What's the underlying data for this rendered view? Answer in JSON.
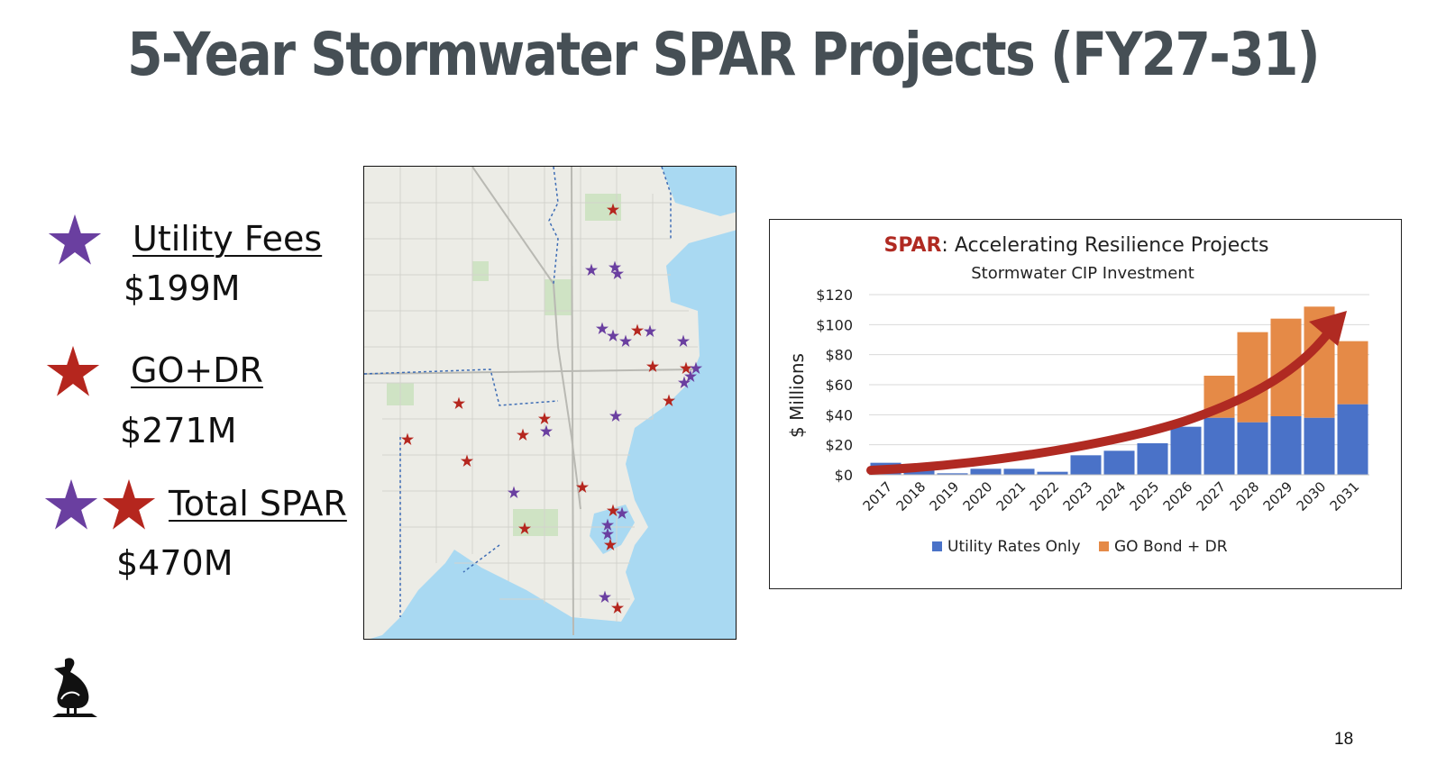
{
  "slide": {
    "title": "5-Year Stormwater SPAR Projects (FY27-31)",
    "page_number": "18"
  },
  "legend": {
    "utility": {
      "label": "Utility Fees",
      "value": "$199M",
      "icon": "purple-star-icon"
    },
    "go_dr": {
      "label": "GO+DR",
      "value": "$271M",
      "icon": "red-star-icon"
    },
    "total": {
      "label": "Total SPAR",
      "value": "$470M",
      "icon": "purple-and-red-star-icon"
    }
  },
  "colors": {
    "title": "#464f55",
    "purple_star": "#6a3fa0",
    "red_star": "#b5261e",
    "utility_bar": "#4a72c8",
    "go_bond_bar": "#e58a47",
    "arrow": "#b02a22",
    "water": "#a9d9f2",
    "land": "#eeeeea"
  },
  "map": {
    "icon": "city-map-image"
  },
  "chart_data": {
    "type": "bar",
    "stacked": true,
    "title_highlight": "SPAR",
    "title_rest": ": Accelerating Resilience Projects",
    "subtitle": "Stormwater CIP Investment",
    "ylabel": "$ Millions",
    "xlabel": "",
    "ylim": [
      0,
      120
    ],
    "yticks": [
      "$0",
      "$20",
      "$40",
      "$60",
      "$80",
      "$100",
      "$120"
    ],
    "categories": [
      "2017",
      "2018",
      "2019",
      "2020",
      "2021",
      "2022",
      "2023",
      "2024",
      "2025",
      "2026",
      "2027",
      "2028",
      "2029",
      "2030",
      "2031"
    ],
    "series": [
      {
        "name": "Utility Rates Only",
        "values": [
          8,
          4,
          1,
          4,
          4,
          2,
          13,
          16,
          21,
          32,
          38,
          35,
          39,
          38,
          47
        ]
      },
      {
        "name": "GO Bond + DR",
        "values": [
          0,
          0,
          0,
          0,
          0,
          0,
          0,
          0,
          0,
          0,
          28,
          60,
          65,
          74,
          42
        ]
      }
    ],
    "grid": true,
    "legend_position": "bottom"
  }
}
